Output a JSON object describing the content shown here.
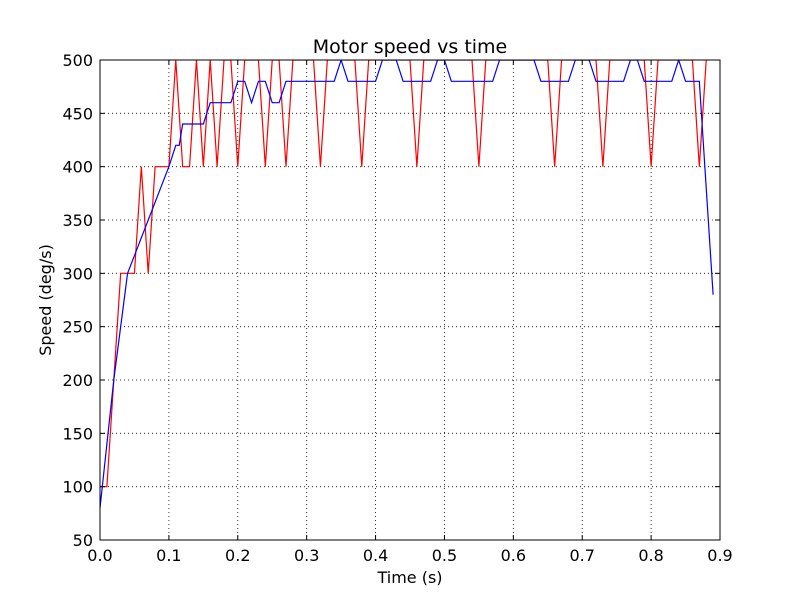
{
  "chart_data": {
    "type": "line",
    "title": "Motor speed vs time",
    "xlabel": "Time (s)",
    "ylabel": "Speed (deg/s)",
    "xlim": [
      0.0,
      0.9
    ],
    "ylim": [
      50,
      500
    ],
    "xticks": [
      "0.0",
      "0.1",
      "0.2",
      "0.3",
      "0.4",
      "0.5",
      "0.6",
      "0.7",
      "0.8",
      "0.9"
    ],
    "yticks": [
      "50",
      "100",
      "150",
      "200",
      "250",
      "300",
      "350",
      "400",
      "450",
      "500"
    ],
    "grid": true,
    "grid_style": "dotted",
    "series": [
      {
        "color": "#ff0000",
        "points": [
          [
            0.0,
            100
          ],
          [
            0.01,
            100
          ],
          [
            0.02,
            200
          ],
          [
            0.03,
            300
          ],
          [
            0.05,
            300
          ],
          [
            0.06,
            400
          ],
          [
            0.07,
            300
          ],
          [
            0.08,
            400
          ],
          [
            0.1,
            400
          ],
          [
            0.11,
            500
          ],
          [
            0.12,
            400
          ],
          [
            0.13,
            400
          ],
          [
            0.14,
            500
          ],
          [
            0.15,
            400
          ],
          [
            0.16,
            500
          ],
          [
            0.17,
            400
          ],
          [
            0.18,
            500
          ],
          [
            0.19,
            500
          ],
          [
            0.2,
            400
          ],
          [
            0.21,
            500
          ],
          [
            0.23,
            500
          ],
          [
            0.24,
            400
          ],
          [
            0.25,
            500
          ],
          [
            0.26,
            500
          ],
          [
            0.27,
            400
          ],
          [
            0.28,
            500
          ],
          [
            0.31,
            500
          ],
          [
            0.32,
            400
          ],
          [
            0.33,
            500
          ],
          [
            0.37,
            500
          ],
          [
            0.38,
            400
          ],
          [
            0.39,
            500
          ],
          [
            0.45,
            500
          ],
          [
            0.46,
            400
          ],
          [
            0.47,
            500
          ],
          [
            0.54,
            500
          ],
          [
            0.55,
            400
          ],
          [
            0.56,
            500
          ],
          [
            0.65,
            500
          ],
          [
            0.66,
            400
          ],
          [
            0.67,
            500
          ],
          [
            0.72,
            500
          ],
          [
            0.73,
            400
          ],
          [
            0.74,
            500
          ],
          [
            0.79,
            500
          ],
          [
            0.8,
            400
          ],
          [
            0.81,
            500
          ],
          [
            0.86,
            500
          ],
          [
            0.87,
            400
          ],
          [
            0.88,
            500
          ]
        ]
      },
      {
        "color": "#0000ff",
        "points": [
          [
            0.0,
            80
          ],
          [
            0.02,
            200
          ],
          [
            0.04,
            300
          ],
          [
            0.1,
            400
          ],
          [
            0.11,
            420
          ],
          [
            0.115,
            420
          ],
          [
            0.12,
            440
          ],
          [
            0.15,
            440
          ],
          [
            0.16,
            460
          ],
          [
            0.19,
            460
          ],
          [
            0.2,
            480
          ],
          [
            0.21,
            480
          ],
          [
            0.22,
            460
          ],
          [
            0.23,
            480
          ],
          [
            0.24,
            480
          ],
          [
            0.25,
            460
          ],
          [
            0.26,
            460
          ],
          [
            0.27,
            480
          ],
          [
            0.34,
            480
          ],
          [
            0.35,
            500
          ],
          [
            0.36,
            480
          ],
          [
            0.4,
            480
          ],
          [
            0.41,
            500
          ],
          [
            0.43,
            500
          ],
          [
            0.44,
            480
          ],
          [
            0.48,
            480
          ],
          [
            0.49,
            500
          ],
          [
            0.5,
            500
          ],
          [
            0.51,
            480
          ],
          [
            0.57,
            480
          ],
          [
            0.58,
            500
          ],
          [
            0.63,
            500
          ],
          [
            0.64,
            480
          ],
          [
            0.68,
            480
          ],
          [
            0.69,
            500
          ],
          [
            0.71,
            500
          ],
          [
            0.72,
            480
          ],
          [
            0.76,
            480
          ],
          [
            0.77,
            500
          ],
          [
            0.78,
            500
          ],
          [
            0.79,
            480
          ],
          [
            0.83,
            480
          ],
          [
            0.84,
            500
          ],
          [
            0.85,
            480
          ],
          [
            0.87,
            480
          ],
          [
            0.88,
            380
          ],
          [
            0.89,
            280
          ]
        ]
      }
    ]
  }
}
